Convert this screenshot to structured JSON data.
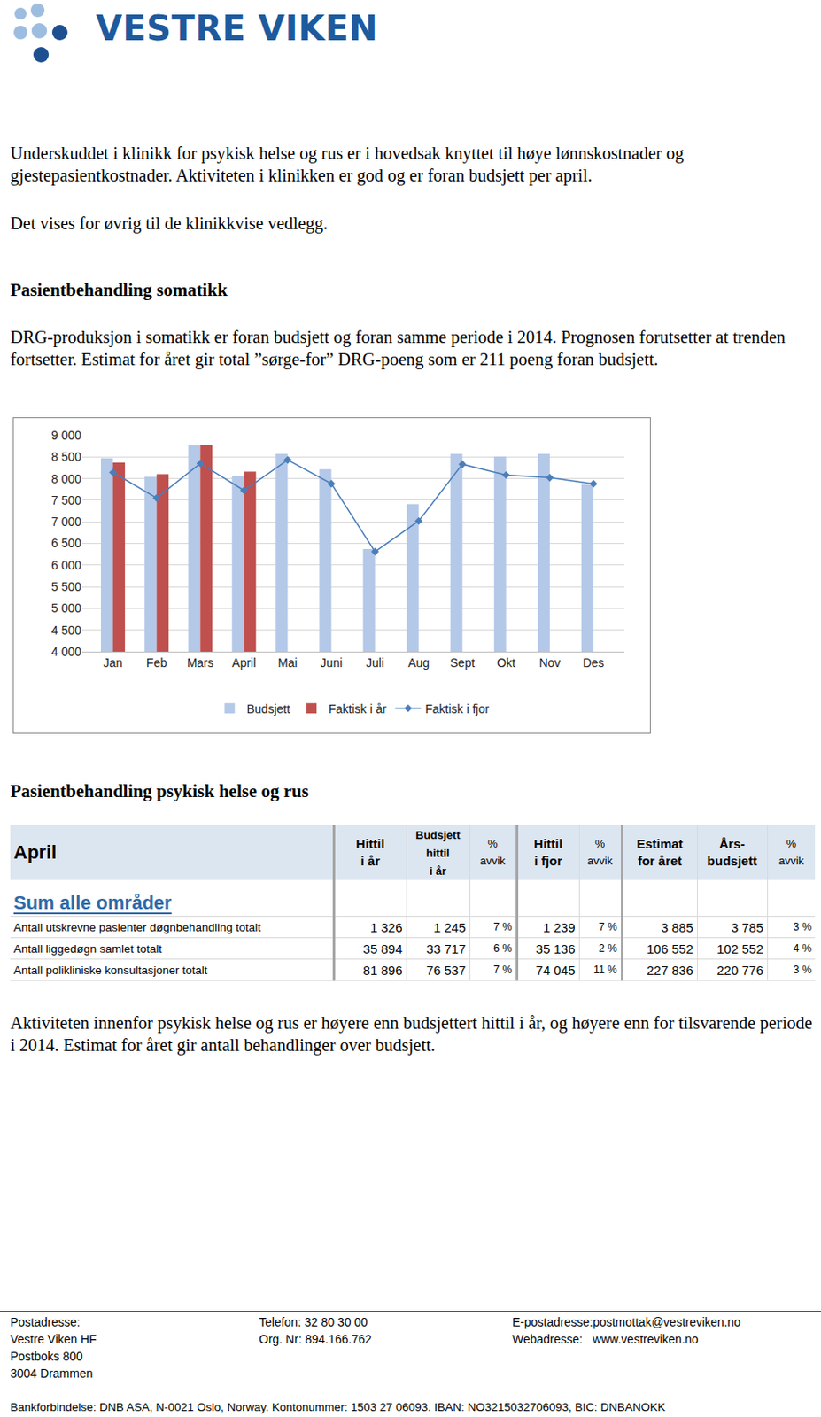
{
  "header": {
    "logo": "VESTRE VIKEN"
  },
  "paragraphs": [
    "Underskuddet i klinikk for psykisk helse og rus er i hovedsak knyttet til høye lønnskostnader og gjestepasientkostnader. Aktiviteten i klinikken er god og er foran budsjett per april.",
    "Det vises for øvrig til de klinikkvise vedlegg."
  ],
  "section1": {
    "heading": "Pasientbehandling somatikk",
    "text": "DRG-produksjon i somatikk er foran budsjett og foran samme periode i 2014.  Prognosen forutsetter at trenden fortsetter. Estimat for året gir total ”sørge-for” DRG-poeng som er 211 poeng foran budsjett."
  },
  "chart_data": {
    "type": "bar",
    "categories": [
      "Jan",
      "Feb",
      "Mars",
      "April",
      "Mai",
      "Juni",
      "Juli",
      "Aug",
      "Sept",
      "Okt",
      "Nov",
      "Des"
    ],
    "series": [
      {
        "name": "Budsjett",
        "type": "bar",
        "color": "#b4c8e8",
        "values": [
          8470,
          8040,
          8765,
          8060,
          8570,
          8215,
          6370,
          7410,
          8570,
          8510,
          8570,
          7860
        ]
      },
      {
        "name": "Faktisk i år",
        "type": "bar",
        "color": "#c0504d",
        "values": [
          8370,
          8100,
          8785,
          8160,
          null,
          null,
          null,
          null,
          null,
          null,
          null,
          null
        ]
      },
      {
        "name": "Faktisk i fjor",
        "type": "line",
        "color": "#4a7ebb",
        "marker": "diamond",
        "values": [
          8140,
          7550,
          8350,
          7725,
          8430,
          7880,
          6310,
          7020,
          8330,
          8080,
          8020,
          7880
        ]
      }
    ],
    "ylim": [
      4000,
      9000
    ],
    "yticks": [
      {
        "value": 4000,
        "label": "4 000"
      },
      {
        "value": 4500,
        "label": "4 500"
      },
      {
        "value": 5000,
        "label": "5 000"
      },
      {
        "value": 5500,
        "label": "5 500"
      },
      {
        "value": 6000,
        "label": "6 000"
      },
      {
        "value": 6500,
        "label": "6 500"
      },
      {
        "value": 7000,
        "label": "7 000"
      },
      {
        "value": 7500,
        "label": "7 500"
      },
      {
        "value": 8000,
        "label": "8 000"
      },
      {
        "value": 8500,
        "label": "8 500"
      },
      {
        "value": 9000,
        "label": "9 000"
      }
    ],
    "grid": true,
    "legend": "bottom"
  },
  "section2": {
    "heading": "Pasientbehandling psykisk helse og rus",
    "table": {
      "header": [
        [
          "April"
        ],
        [
          "Hittil",
          "i år"
        ],
        [
          "Budsjett",
          "hittil",
          "i år"
        ],
        [
          "%",
          "avvik"
        ],
        [
          "Hittil",
          "i fjor"
        ],
        [
          "%",
          "avvik"
        ],
        [
          "Estimat",
          "for året"
        ],
        [
          "Års-",
          "budsjett"
        ],
        [
          "%",
          "avvik"
        ]
      ],
      "section": "Sum alle områder",
      "rows": [
        [
          "Antall utskrevne pasienter døgnbehandling totalt",
          "1 326",
          "1 245",
          "7 %",
          "1 239",
          "7 %",
          "3 885",
          "3 785",
          "3 %"
        ],
        [
          "Antall liggedøgn samlet totalt",
          "35 894",
          "33 717",
          "6 %",
          "35 136",
          "2 %",
          "106 552",
          "102 552",
          "4 %"
        ],
        [
          "Antall polikliniske konsultasjoner totalt",
          "81 896",
          "76 537",
          "7 %",
          "74 045",
          "11 %",
          "227 836",
          "220 776",
          "3 %"
        ]
      ]
    },
    "text": "Aktiviteten innenfor psykisk helse og rus er høyere enn budsjettert hittil i år, og høyere enn for tilsvarende periode i 2014. Estimat for året gir antall behandlinger over budsjett."
  },
  "footer": {
    "columns": [
      [
        "Postadresse:",
        "Vestre Viken HF",
        "Postboks 800",
        "3004 Drammen"
      ],
      [
        "Telefon: 32 80 30 00",
        "Org. Nr: 894.166.762"
      ],
      [
        "E-postadresse:postmottak@vestreviken.no",
        "Webadresse:   www.vestreviken.no"
      ]
    ],
    "bank": "Bankforbindelse: DNB ASA, N-0021 Oslo, Norway. Kontonummer: 1503 27 06093. IBAN: NO3215032706093, BIC: DNBANOKK"
  }
}
